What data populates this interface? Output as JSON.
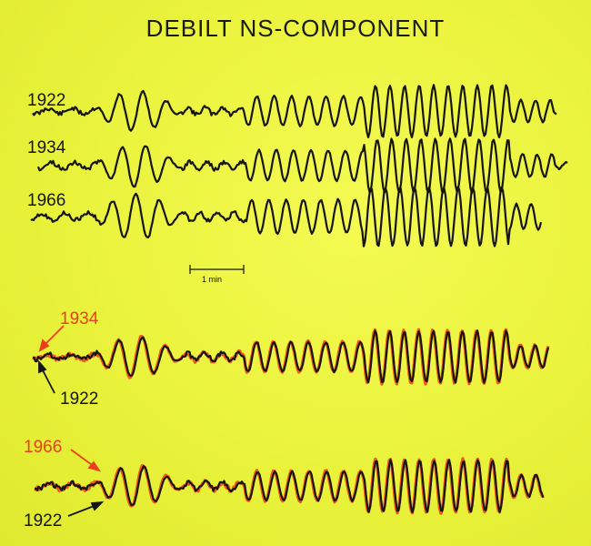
{
  "title": "DEBILT NS-COMPONENT",
  "scale_bar": {
    "label": "1 min"
  },
  "traces": {
    "top": [
      {
        "label": "1922",
        "color": "#151515"
      },
      {
        "label": "1934",
        "color": "#151515"
      },
      {
        "label": "1966",
        "color": "#151515"
      }
    ],
    "comparison_1": {
      "red_label": "1934",
      "black_label": "1922",
      "red_color": "#ee5a1c",
      "black_color": "#151515"
    },
    "comparison_2": {
      "red_label": "1966",
      "black_label": "1922",
      "red_color": "#ee5a1c",
      "black_color": "#151515"
    }
  }
}
